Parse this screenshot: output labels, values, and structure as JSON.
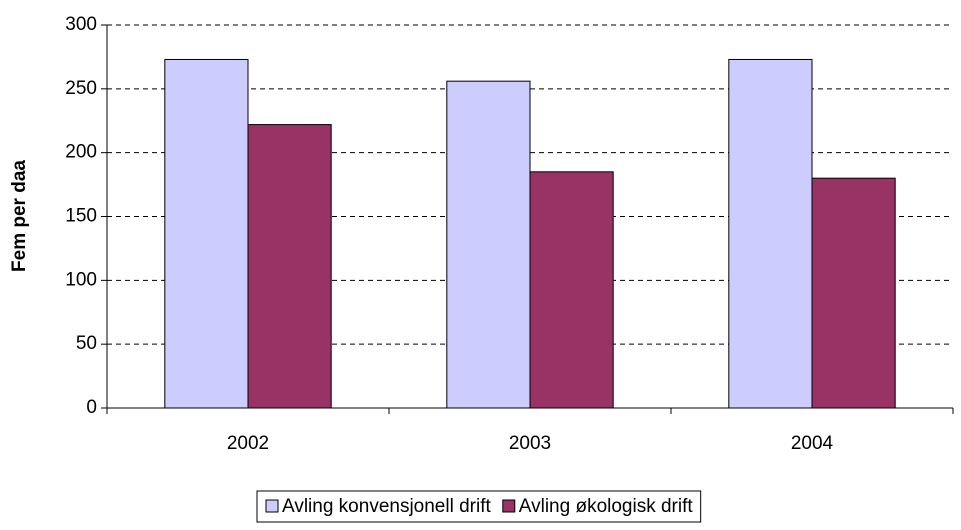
{
  "chart_data": {
    "type": "bar",
    "y_label": "Fem per daa",
    "categories": [
      "2002",
      "2003",
      "2004"
    ],
    "series": [
      {
        "name": "Avling konvensjonell drift",
        "color": "#ccccff",
        "values": [
          273,
          256,
          273
        ]
      },
      {
        "name": "Avling økologisk drift",
        "color": "#993366",
        "values": [
          222,
          185,
          180
        ]
      }
    ],
    "ylim": [
      0,
      300
    ],
    "yticks": [
      0,
      50,
      100,
      150,
      200,
      250,
      300
    ],
    "grid": true,
    "legend": "bottom"
  }
}
